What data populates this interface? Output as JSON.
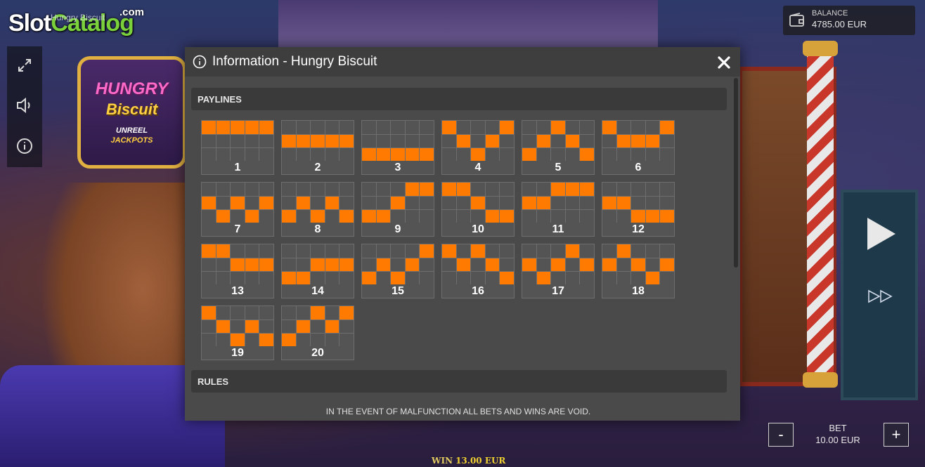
{
  "app": {
    "logo_part1": "Slot",
    "logo_part2": "Catalog",
    "logo_suffix": ".com",
    "game_caption": "Hungry Biscuit"
  },
  "background": {
    "sign": {
      "line1": "HUNGRY",
      "line2": "Biscuit",
      "line3": "UNREEL",
      "line4": "JACKPOTS"
    }
  },
  "toolbar": {
    "items": [
      {
        "name": "fullscreen",
        "icon": "expand-icon"
      },
      {
        "name": "sound",
        "icon": "speaker-icon"
      },
      {
        "name": "info",
        "icon": "info-icon"
      }
    ]
  },
  "balance": {
    "label": "BALANCE",
    "value": "4785.00 EUR",
    "icon": "wallet-icon"
  },
  "modal": {
    "title": "Information - Hungry Biscuit",
    "close_icon": "close-icon",
    "sections": {
      "paylines": "PAYLINES",
      "rules": "RULES"
    },
    "rules_text": "IN THE EVENT OF MALFUNCTION ALL BETS AND WINS ARE VOID.",
    "paylines": [
      {
        "label": "1",
        "rows": [
          0,
          0,
          0,
          0,
          0
        ]
      },
      {
        "label": "2",
        "rows": [
          1,
          1,
          1,
          1,
          1
        ]
      },
      {
        "label": "3",
        "rows": [
          2,
          2,
          2,
          2,
          2
        ]
      },
      {
        "label": "4",
        "rows": [
          0,
          1,
          2,
          1,
          0
        ]
      },
      {
        "label": "5",
        "rows": [
          2,
          1,
          0,
          1,
          2
        ]
      },
      {
        "label": "6",
        "rows": [
          0,
          1,
          1,
          1,
          0
        ]
      },
      {
        "label": "7",
        "rows": [
          1,
          2,
          1,
          2,
          1
        ]
      },
      {
        "label": "8",
        "rows": [
          2,
          1,
          2,
          1,
          2
        ]
      },
      {
        "label": "9",
        "rows": [
          2,
          2,
          1,
          0,
          0
        ]
      },
      {
        "label": "10",
        "rows": [
          0,
          0,
          1,
          2,
          2
        ]
      },
      {
        "label": "11",
        "rows": [
          1,
          1,
          0,
          0,
          0
        ]
      },
      {
        "label": "12",
        "rows": [
          1,
          1,
          2,
          2,
          2
        ]
      },
      {
        "label": "13",
        "rows": [
          0,
          0,
          1,
          1,
          1
        ]
      },
      {
        "label": "14",
        "rows": [
          2,
          2,
          1,
          1,
          1
        ]
      },
      {
        "label": "15",
        "rows": [
          2,
          1,
          2,
          1,
          0
        ]
      },
      {
        "label": "16",
        "rows": [
          0,
          1,
          0,
          1,
          2
        ]
      },
      {
        "label": "17",
        "rows": [
          1,
          2,
          1,
          0,
          1
        ]
      },
      {
        "label": "18",
        "rows": [
          1,
          0,
          1,
          2,
          1
        ]
      },
      {
        "label": "19",
        "rows": [
          0,
          1,
          2,
          1,
          2
        ]
      },
      {
        "label": "20",
        "rows": [
          2,
          1,
          0,
          1,
          0
        ]
      }
    ],
    "colors": {
      "active_cell": "#ff7a00",
      "inactive_cell": "#545454"
    }
  },
  "controls": {
    "play_icon": "play-icon",
    "fast_forward_icon": "fast-forward-icon",
    "minus_label": "-",
    "plus_label": "+",
    "bet_label": "BET",
    "bet_value": "10.00 EUR"
  },
  "win": {
    "label": "WIN",
    "value": "13.00 EUR"
  }
}
